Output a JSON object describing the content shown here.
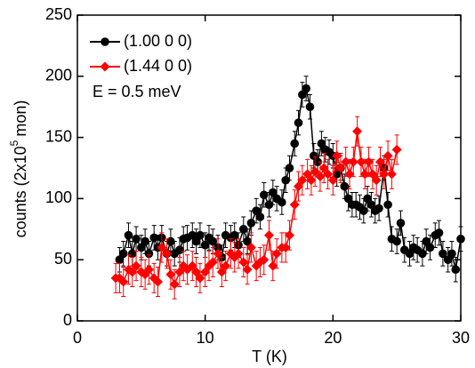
{
  "chart_data": {
    "type": "scatter",
    "xlabel": "T (K)",
    "ylabel_parts": [
      "counts (2x10",
      "5",
      "mon)"
    ],
    "annotation": "E = 0.5 meV",
    "xlim": [
      0,
      30
    ],
    "ylim": [
      0,
      250
    ],
    "xticks": [
      0,
      10,
      20,
      30
    ],
    "yticks": [
      0,
      50,
      100,
      150,
      200,
      250
    ],
    "legend": "upper left",
    "series": [
      {
        "name": "(1.00 0 0)",
        "color": "#000000",
        "marker": "circle",
        "error": 10,
        "x": [
          3.3,
          3.6,
          4,
          4.3,
          4.6,
          5,
          5.3,
          5.6,
          6,
          6.3,
          6.6,
          7,
          7.3,
          7.6,
          8,
          8.3,
          8.6,
          9,
          9.3,
          9.6,
          10,
          10.3,
          10.6,
          11,
          11.3,
          11.6,
          12,
          12.3,
          12.6,
          13,
          13.3,
          13.6,
          14,
          14.3,
          14.6,
          15,
          15.3,
          15.6,
          16,
          16.3,
          16.6,
          17,
          17.3,
          17.6,
          17.9,
          18.2,
          18.5,
          18.8,
          19.1,
          19.4,
          19.7,
          20,
          20.3,
          20.6,
          20.9,
          21.2,
          21.5,
          21.8,
          22.1,
          22.4,
          22.7,
          23,
          23.3,
          23.6,
          24,
          24.3,
          24.6,
          25,
          25.3,
          25.6,
          26,
          26.3,
          26.6,
          27,
          27.3,
          27.6,
          28,
          28.3,
          28.6,
          29,
          29.3,
          29.6,
          30
        ],
        "values": [
          50,
          55,
          70,
          55,
          67,
          60,
          65,
          55,
          68,
          60,
          68,
          55,
          65,
          55,
          58,
          67,
          68,
          70,
          65,
          70,
          62,
          68,
          65,
          60,
          52,
          70,
          68,
          70,
          62,
          75,
          65,
          80,
          90,
          85,
          103,
          95,
          105,
          100,
          97,
          115,
          125,
          145,
          162,
          185,
          190,
          175,
          135,
          130,
          145,
          140,
          138,
          135,
          120,
          125,
          110,
          100,
          95,
          95,
          93,
          90,
          100,
          95,
          90,
          92,
          125,
          95,
          67,
          65,
          80,
          58,
          55,
          60,
          58,
          55,
          65,
          60,
          70,
          72,
          55,
          50,
          55,
          42,
          67
        ]
      },
      {
        "name": "(1.44 0 0)",
        "color": "#ff0000",
        "marker": "diamond",
        "error": 12,
        "x": [
          3,
          3.3,
          3.6,
          4,
          4.3,
          4.6,
          5,
          5.3,
          5.6,
          6,
          6.3,
          6.6,
          7,
          7.3,
          7.6,
          8,
          8.3,
          8.6,
          9,
          9.3,
          9.6,
          10,
          10.3,
          10.6,
          11,
          11.3,
          11.6,
          12,
          12.3,
          12.6,
          13,
          13.3,
          13.6,
          14,
          14.3,
          14.6,
          15,
          15.3,
          15.6,
          16,
          16.3,
          16.6,
          17,
          17.3,
          17.6,
          18,
          18.3,
          18.6,
          19,
          19.3,
          19.6,
          20,
          20.3,
          20.6,
          21,
          21.3,
          21.6,
          21.9,
          22.2,
          22.5,
          22.8,
          23.1,
          23.4,
          23.7,
          24,
          24.3,
          24.6,
          25
        ],
        "values": [
          35,
          35,
          32,
          42,
          40,
          45,
          40,
          38,
          42,
          35,
          32,
          60,
          55,
          38,
          30,
          40,
          45,
          42,
          45,
          40,
          35,
          40,
          45,
          48,
          55,
          40,
          45,
          55,
          52,
          55,
          48,
          42,
          60,
          45,
          48,
          50,
          70,
          45,
          55,
          60,
          60,
          70,
          95,
          110,
          115,
          120,
          115,
          122,
          118,
          125,
          120,
          115,
          135,
          125,
          130,
          120,
          130,
          155,
          130,
          120,
          130,
          120,
          115,
          130,
          120,
          135,
          120,
          140
        ]
      }
    ]
  }
}
